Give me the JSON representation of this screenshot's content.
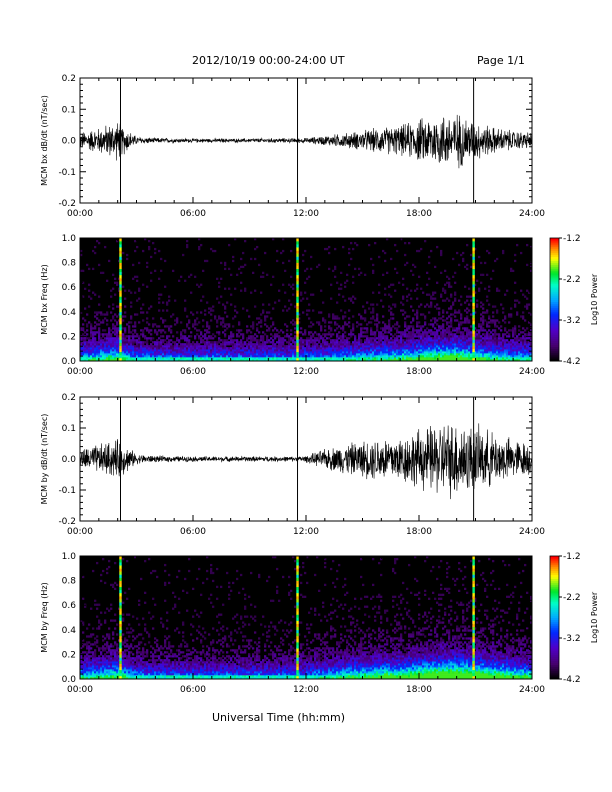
{
  "header": {
    "title": "2012/10/19   00:00-24:00 UT",
    "page": "Page 1/1"
  },
  "footer": {
    "xlabel": "Universal Time (hh:mm)"
  },
  "colorbar": {
    "label": "Log10 Power",
    "ticks": [
      "-1.2",
      "-2.2",
      "-3.2",
      "-4.2"
    ],
    "range": [
      -4.2,
      -1.2
    ]
  },
  "chart_data": [
    {
      "type": "line",
      "ylabel": "MCM bx dB/dt (nT/sec)",
      "xlim": [
        0,
        24
      ],
      "ylim": [
        -0.2,
        0.2
      ],
      "xticks": [
        "00:00",
        "06:00",
        "12:00",
        "18:00",
        "24:00"
      ],
      "yticks": [
        "-0.2",
        "-0.1",
        "0.0",
        "0.1",
        "0.2"
      ],
      "event_lines_hours": [
        2.15,
        11.55,
        20.9
      ],
      "envelope": {
        "x": [
          0,
          1,
          2,
          2.5,
          3,
          4,
          6,
          8,
          10,
          11.5,
          12,
          13,
          14,
          15,
          16,
          17,
          18,
          19,
          20,
          21,
          22,
          23,
          24
        ],
        "amplitude": [
          0.025,
          0.04,
          0.06,
          0.035,
          0.012,
          0.008,
          0.006,
          0.006,
          0.007,
          0.007,
          0.008,
          0.015,
          0.022,
          0.03,
          0.04,
          0.045,
          0.065,
          0.08,
          0.085,
          0.06,
          0.04,
          0.03,
          0.025
        ]
      }
    },
    {
      "type": "heatmap",
      "ylabel": "MCM bx Freq (Hz)",
      "xlim": [
        0,
        24
      ],
      "ylim": [
        0,
        1.0
      ],
      "xticks": [
        "00:00",
        "06:00",
        "12:00",
        "18:00",
        "24:00"
      ],
      "yticks": [
        "0.0",
        "0.2",
        "0.4",
        "0.6",
        "0.8",
        "1.0"
      ],
      "event_lines_hours": [
        2.15,
        11.55,
        20.9
      ]
    },
    {
      "type": "line",
      "ylabel": "MCM by dB/dt (nT/sec)",
      "xlim": [
        0,
        24
      ],
      "ylim": [
        -0.2,
        0.2
      ],
      "xticks": [
        "00:00",
        "06:00",
        "12:00",
        "18:00",
        "24:00"
      ],
      "yticks": [
        "-0.2",
        "-0.1",
        "0.0",
        "0.1",
        "0.2"
      ],
      "event_lines_hours": [
        2.15,
        11.55,
        20.9
      ],
      "envelope": {
        "x": [
          0,
          1,
          2,
          2.5,
          3,
          4,
          6,
          8,
          10,
          11.5,
          12,
          13,
          14,
          15,
          16,
          17,
          18,
          19,
          20,
          21,
          22,
          23,
          24
        ],
        "amplitude": [
          0.03,
          0.045,
          0.06,
          0.04,
          0.015,
          0.01,
          0.008,
          0.008,
          0.008,
          0.008,
          0.01,
          0.03,
          0.045,
          0.055,
          0.07,
          0.07,
          0.09,
          0.11,
          0.12,
          0.1,
          0.08,
          0.06,
          0.05
        ]
      }
    },
    {
      "type": "heatmap",
      "ylabel": "MCM by Freq (Hz)",
      "xlim": [
        0,
        24
      ],
      "ylim": [
        0,
        1.0
      ],
      "xticks": [
        "00:00",
        "06:00",
        "12:00",
        "18:00",
        "24:00"
      ],
      "yticks": [
        "0.0",
        "0.2",
        "0.4",
        "0.6",
        "0.8",
        "1.0"
      ],
      "event_lines_hours": [
        2.15,
        11.55,
        20.9
      ]
    }
  ]
}
